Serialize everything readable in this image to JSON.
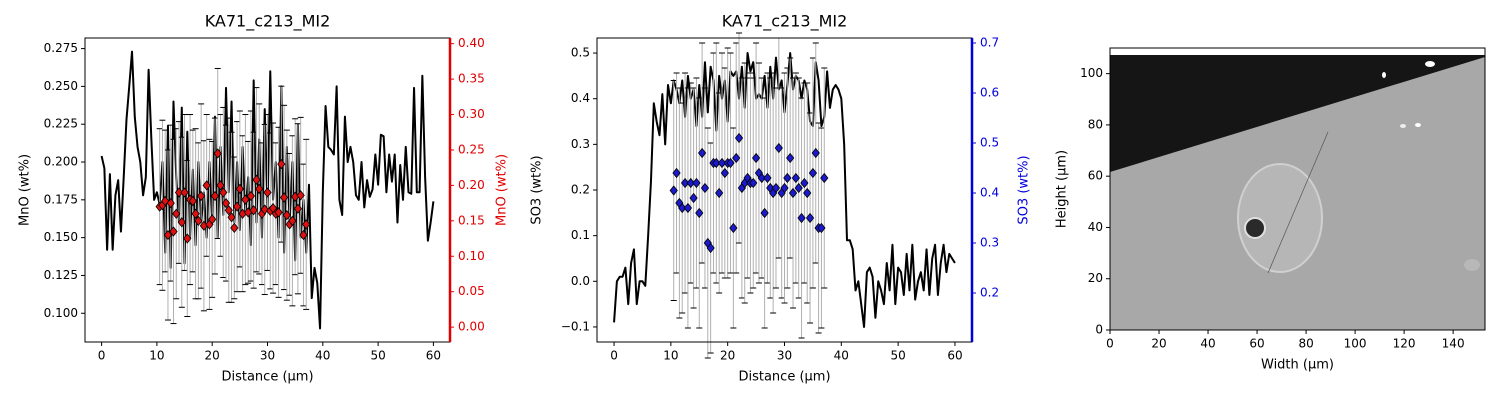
{
  "chart_data": [
    {
      "type": "line",
      "title": "KA71_c213_MI2",
      "xlabel": "Distance (µm)",
      "ylabel": "MnO (wt%)",
      "y2label": "MnO (wt%)",
      "y2color": "#e00000",
      "xlim": [
        -3,
        63
      ],
      "xticks": [
        0,
        10,
        20,
        30,
        40,
        50,
        60
      ],
      "ylim": [
        0.081,
        0.282
      ],
      "yticks": [
        {
          "value": 0.1,
          "label": "0.100"
        },
        0.125,
        {
          "value": 0.15,
          "label": "0.150"
        },
        0.175,
        {
          "value": 0.2,
          "label": "0.200"
        },
        0.225,
        {
          "value": 0.25,
          "label": "0.250"
        },
        0.275
      ],
      "y2lim": [
        -0.021,
        0.408
      ],
      "y2ticks": [
        {
          "value": 0,
          "label": "0.00"
        },
        0.05,
        {
          "value": 0.1,
          "label": "0.10"
        },
        0.15,
        {
          "value": 0.2,
          "label": "0.20"
        },
        0.25,
        {
          "value": 0.3,
          "label": "0.30"
        },
        0.35,
        {
          "value": 0.4,
          "label": "0.40"
        }
      ],
      "series": [
        {
          "color": "#000000",
          "x": [
            0,
            0.5,
            1,
            1.5,
            2,
            2.5,
            3,
            3.5,
            4,
            4.5,
            5,
            5.5,
            6,
            6.5,
            7,
            7.5,
            8,
            8.5,
            9,
            9.5,
            10,
            10.5,
            11,
            11.5,
            12,
            12.5,
            13,
            13.5,
            14,
            14.5,
            15,
            15.5,
            16,
            16.5,
            17,
            17.5,
            18,
            18.5,
            19,
            19.5,
            20,
            20.5,
            21,
            21.5,
            22,
            22.5,
            23,
            23.5,
            24,
            24.5,
            25,
            25.5,
            26,
            26.5,
            27,
            27.5,
            28,
            28.5,
            29,
            29.5,
            30,
            30.5,
            31,
            31.5,
            32,
            32.5,
            33,
            33.5,
            34,
            34.5,
            35,
            35.5,
            36,
            36.5,
            37,
            37.5,
            38,
            38.5,
            39,
            39.5,
            40,
            40.5,
            41,
            41.5,
            42,
            42.5,
            43,
            43.5,
            44,
            44.5,
            45,
            45.5,
            46,
            46.5,
            47,
            47.5,
            48,
            48.5,
            49,
            49.5,
            50,
            50.5,
            51,
            51.5,
            52,
            52.5,
            53,
            53.5,
            54,
            54.5,
            55,
            55.5,
            56,
            56.5,
            57,
            57.5,
            58,
            58.5,
            59,
            59.5,
            60
          ],
          "values": [
            0.204,
            0.196,
            0.142,
            0.192,
            0.142,
            0.178,
            0.188,
            0.154,
            0.19,
            0.228,
            0.25,
            0.273,
            0.23,
            0.21,
            0.2,
            0.178,
            0.19,
            0.261,
            0.215,
            0.175,
            0.18,
            0.172,
            0.2,
            0.14,
            0.224,
            0.13,
            0.24,
            0.19,
            0.16,
            0.236,
            0.133,
            0.22,
            0.15,
            0.195,
            0.145,
            0.2,
            0.16,
            0.18,
            0.15,
            0.2,
            0.16,
            0.23,
            0.15,
            0.21,
            0.165,
            0.249,
            0.18,
            0.24,
            0.16,
            0.2,
            0.155,
            0.21,
            0.165,
            0.19,
            0.145,
            0.254,
            0.16,
            0.215,
            0.15,
            0.235,
            0.17,
            0.26,
            0.175,
            0.2,
            0.15,
            0.25,
            0.14,
            0.21,
            0.16,
            0.2,
            0.135,
            0.225,
            0.15,
            0.175,
            0.14,
            0.185,
            0.11,
            0.13,
            0.12,
            0.09,
            0.18,
            0.237,
            0.21,
            0.208,
            0.205,
            0.25,
            0.175,
            0.165,
            0.23,
            0.2,
            0.21,
            0.2,
            0.178,
            0.175,
            0.2,
            0.17,
            0.188,
            0.177,
            0.182,
            0.205,
            0.185,
            0.218,
            0.217,
            0.18,
            0.205,
            0.187,
            0.205,
            0.16,
            0.198,
            0.175,
            0.21,
            0.18,
            0.179,
            0.249,
            0.18,
            0.18,
            0.257,
            0.19,
            0.148,
            0.16,
            0.174
          ]
        },
        {
          "color": "#dd1111",
          "axis": "y2",
          "marker": "diamond",
          "x": [
            10.5,
            11,
            11.5,
            12,
            12.5,
            13,
            13.5,
            14,
            14.5,
            15,
            15.5,
            16,
            16.5,
            17,
            17.5,
            18,
            18.5,
            19,
            19.5,
            20,
            20.5,
            21,
            21.5,
            22,
            22.5,
            23,
            23.5,
            24,
            24.5,
            25,
            25.5,
            26,
            26.5,
            27,
            27.5,
            28,
            28.5,
            29,
            29.5,
            30,
            30.5,
            31,
            31.5,
            32,
            32.5,
            33,
            33.5,
            34,
            34.5,
            35,
            35.5,
            36,
            36.5,
            37
          ],
          "values": [
            0.17,
            0.172,
            0.178,
            0.13,
            0.175,
            0.135,
            0.16,
            0.19,
            0.148,
            0.19,
            0.125,
            0.18,
            0.178,
            0.16,
            0.15,
            0.185,
            0.143,
            0.2,
            0.145,
            0.152,
            0.185,
            0.245,
            0.2,
            0.19,
            0.175,
            0.165,
            0.155,
            0.14,
            0.17,
            0.195,
            0.16,
            0.18,
            0.162,
            0.185,
            0.165,
            0.208,
            0.195,
            0.16,
            0.166,
            0.19,
            0.164,
            0.168,
            0.16,
            0.162,
            0.23,
            0.183,
            0.158,
            0.145,
            0.15,
            0.184,
            0.167,
            0.186,
            0.13,
            0.145
          ],
          "errors": [
            0.11,
            0.12,
            0.1,
            0.12,
            0.11,
            0.13,
            0.12,
            0.1,
            0.12,
            0.11,
            0.11,
            0.12,
            0.1,
            0.12,
            0.11,
            0.13,
            0.12,
            0.1,
            0.12,
            0.11,
            0.11,
            0.12,
            0.1,
            0.12,
            0.11,
            0.13,
            0.12,
            0.1,
            0.12,
            0.11,
            0.11,
            0.12,
            0.1,
            0.12,
            0.11,
            0.13,
            0.12,
            0.1,
            0.12,
            0.11,
            0.11,
            0.12,
            0.1,
            0.12,
            0.11,
            0.13,
            0.12,
            0.1,
            0.12,
            0.11,
            0.12,
            0.11,
            0.1,
            0.12
          ]
        }
      ]
    },
    {
      "type": "line",
      "title": "KA71_c213_MI2",
      "xlabel": "Distance (µm)",
      "ylabel": "SO3 (wt%)",
      "y2label": "SO3 (wt%)",
      "y2color": "#0000dd",
      "xlim": [
        -3,
        63
      ],
      "xticks": [
        0,
        10,
        20,
        30,
        40,
        50,
        60
      ],
      "ylim": [
        -0.133,
        0.533
      ],
      "yticks": [
        {
          "value": -0.1,
          "label": "−0.1"
        },
        {
          "value": 0,
          "label": "0.0"
        },
        0.1,
        0.2,
        0.3,
        0.4,
        0.5
      ],
      "y2lim": [
        0.102,
        0.71
      ],
      "y2ticks": [
        0.2,
        0.3,
        0.4,
        0.5,
        0.6,
        0.7
      ],
      "series": [
        {
          "color": "#000000",
          "x": [
            0,
            0.5,
            1,
            1.5,
            2,
            2.5,
            3,
            3.5,
            4,
            4.5,
            5,
            5.5,
            6,
            6.5,
            7,
            7.5,
            8,
            8.5,
            9,
            9.5,
            10,
            10.5,
            11,
            11.5,
            12,
            12.5,
            13,
            13.5,
            14,
            14.5,
            15,
            15.5,
            16,
            16.5,
            17,
            17.5,
            18,
            18.5,
            19,
            19.5,
            20,
            20.5,
            21,
            21.5,
            22,
            22.5,
            23,
            23.5,
            24,
            24.5,
            25,
            25.5,
            26,
            26.5,
            27,
            27.5,
            28,
            28.5,
            29,
            29.5,
            30,
            30.5,
            31,
            31.5,
            32,
            32.5,
            33,
            33.5,
            34,
            34.5,
            35,
            35.5,
            36,
            36.5,
            37,
            37.5,
            38,
            38.5,
            39,
            39.5,
            40,
            40.5,
            41,
            41.5,
            42,
            42.5,
            43,
            43.5,
            44,
            44.5,
            45,
            45.5,
            46,
            46.5,
            47,
            47.5,
            48,
            48.5,
            49,
            49.5,
            50,
            50.5,
            51,
            51.5,
            52,
            52.5,
            53,
            53.5,
            54,
            54.5,
            55,
            55.5,
            56,
            56.5,
            57,
            57.5,
            58,
            58.5,
            59,
            59.5,
            60
          ],
          "values": [
            -0.09,
            0.0,
            0.01,
            0.01,
            0.03,
            -0.05,
            0.04,
            0.07,
            -0.05,
            0.0,
            0.0,
            -0.01,
            0.1,
            0.22,
            0.39,
            0.35,
            0.32,
            0.41,
            0.3,
            0.43,
            0.39,
            0.44,
            0.42,
            0.39,
            0.44,
            0.36,
            0.45,
            0.4,
            0.42,
            0.34,
            0.43,
            0.36,
            0.48,
            0.37,
            0.47,
            0.44,
            0.33,
            0.45,
            0.4,
            0.44,
            0.35,
            0.46,
            0.45,
            0.46,
            0.4,
            0.47,
            0.38,
            0.5,
            0.46,
            0.48,
            0.4,
            0.41,
            0.4,
            0.45,
            0.38,
            0.47,
            0.4,
            0.49,
            0.42,
            0.44,
            0.37,
            0.43,
            0.5,
            0.42,
            0.45,
            0.44,
            0.4,
            0.44,
            0.42,
            0.35,
            0.34,
            0.48,
            0.44,
            0.34,
            0.36,
            0.46,
            0.38,
            0.42,
            0.43,
            0.42,
            0.4,
            0.3,
            0.09,
            0.09,
            0.07,
            -0.02,
            0.0,
            -0.05,
            -0.1,
            0.02,
            0.03,
            0.01,
            -0.08,
            0.0,
            -0.02,
            -0.05,
            0.04,
            -0.02,
            0.08,
            -0.05,
            0.03,
            0.02,
            -0.03,
            0.06,
            -0.02,
            0.08,
            -0.04,
            0.0,
            0.02,
            -0.02,
            0.07,
            -0.03,
            0.05,
            0.08,
            -0.03,
            0.04,
            0.08,
            0.02,
            0.06,
            0.05,
            0.04
          ]
        },
        {
          "color": "#1a1acc",
          "axis": "y2",
          "marker": "diamond",
          "x": [
            10.5,
            11,
            11.5,
            12,
            12.5,
            13,
            13.5,
            14,
            14.5,
            15,
            15.5,
            16,
            16.5,
            17,
            17.5,
            18,
            18.5,
            19,
            19.5,
            20,
            20.5,
            21,
            21.5,
            22,
            22.5,
            23,
            23.5,
            24,
            24.5,
            25,
            25.5,
            26,
            26.5,
            27,
            27.5,
            28,
            28.5,
            29,
            29.5,
            30,
            30.5,
            31,
            31.5,
            32,
            32.5,
            33,
            33.5,
            34,
            34.5,
            35,
            35.5,
            36,
            36.5,
            37
          ],
          "values": [
            0.405,
            0.44,
            0.38,
            0.37,
            0.42,
            0.37,
            0.42,
            0.39,
            0.42,
            0.36,
            0.48,
            0.41,
            0.3,
            0.29,
            0.46,
            0.46,
            0.4,
            0.46,
            0.44,
            0.46,
            0.46,
            0.33,
            0.47,
            0.51,
            0.41,
            0.42,
            0.43,
            0.42,
            0.42,
            0.47,
            0.44,
            0.43,
            0.36,
            0.43,
            0.41,
            0.4,
            0.41,
            0.49,
            0.4,
            0.41,
            0.43,
            0.47,
            0.4,
            0.43,
            0.41,
            0.35,
            0.42,
            0.4,
            0.35,
            0.44,
            0.48,
            0.33,
            0.33,
            0.43
          ],
          "errors": [
            0.22,
            0.2,
            0.23,
            0.21,
            0.22,
            0.24,
            0.2,
            0.22,
            0.21,
            0.23,
            0.22,
            0.2,
            0.23,
            0.21,
            0.22,
            0.24,
            0.2,
            0.22,
            0.21,
            0.23,
            0.22,
            0.2,
            0.23,
            0.21,
            0.22,
            0.24,
            0.2,
            0.22,
            0.21,
            0.23,
            0.22,
            0.2,
            0.23,
            0.21,
            0.22,
            0.24,
            0.2,
            0.22,
            0.21,
            0.23,
            0.22,
            0.2,
            0.23,
            0.21,
            0.22,
            0.24,
            0.2,
            0.22,
            0.21,
            0.23,
            0.22,
            0.21,
            0.2,
            0.22
          ]
        }
      ]
    },
    {
      "type": "image",
      "xlabel": "Width (µm)",
      "ylabel": "Height (µm)",
      "xlim": [
        0,
        153
      ],
      "xticks": [
        0,
        20,
        40,
        60,
        80,
        100,
        120,
        140
      ],
      "ylim": [
        0,
        110
      ],
      "yticks": [
        0,
        20,
        40,
        60,
        80,
        100
      ]
    }
  ]
}
